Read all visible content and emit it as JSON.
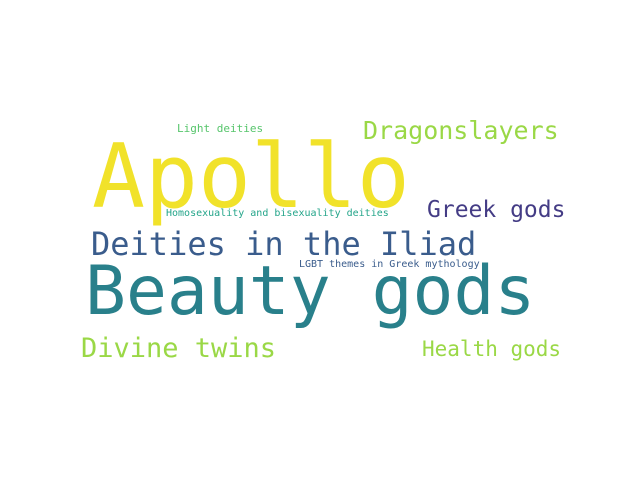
{
  "word_cloud": {
    "background": "#ffffff",
    "words": [
      {
        "id": "apollo",
        "text": "Apollo",
        "color": "#f1e22a"
      },
      {
        "id": "beauty",
        "text": "Beauty gods",
        "color": "#29808b"
      },
      {
        "id": "iliad",
        "text": "Deities in the Iliad",
        "color": "#3a5c8c"
      },
      {
        "id": "dragon",
        "text": "Dragonslayers",
        "color": "#9ad846"
      },
      {
        "id": "greek",
        "text": "Greek gods",
        "color": "#443c85"
      },
      {
        "id": "twins",
        "text": "Divine twins",
        "color": "#9ad846"
      },
      {
        "id": "health",
        "text": "Health gods",
        "color": "#9ad846"
      },
      {
        "id": "light",
        "text": "Light deities",
        "color": "#56c56b"
      },
      {
        "id": "homo",
        "text": "Homosexuality and bisexuality deities",
        "color": "#24a58a"
      },
      {
        "id": "lgbt",
        "text": "LGBT themes in Greek mythology",
        "color": "#3a5c8c"
      }
    ]
  }
}
